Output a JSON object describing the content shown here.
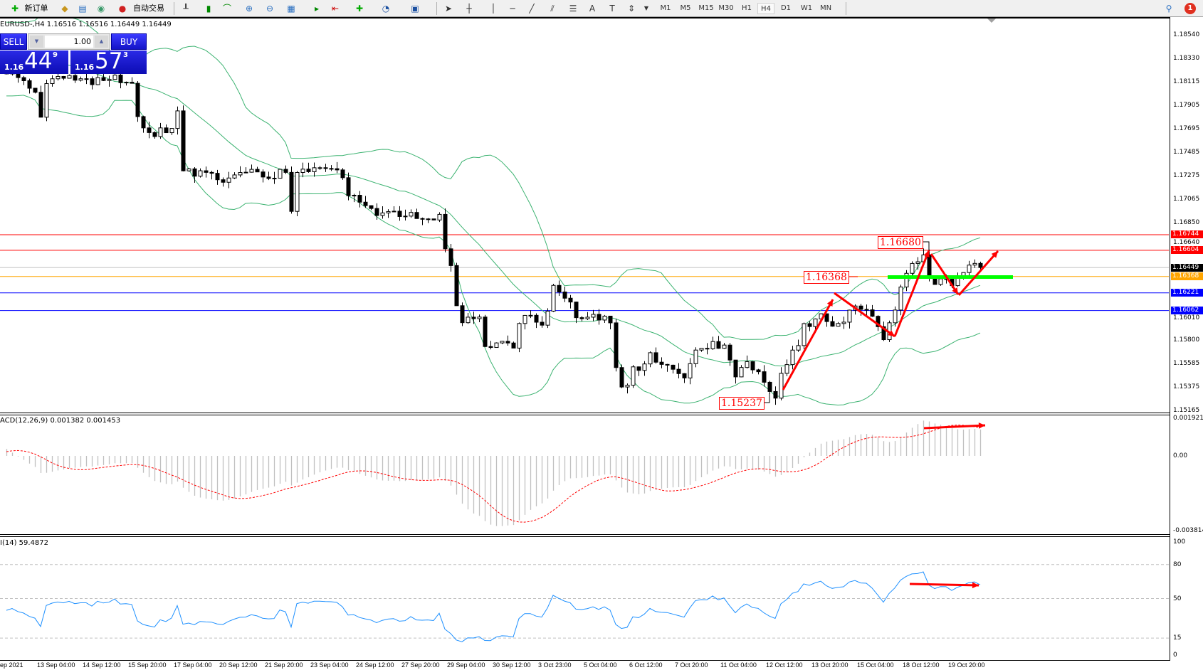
{
  "toolbar": {
    "new_order": "新订单",
    "auto_trading": "自动交易",
    "timeframes": [
      "M1",
      "M5",
      "M15",
      "M30",
      "H1",
      "H4",
      "D1",
      "W1",
      "MN"
    ],
    "active_timeframe": "H4",
    "notification_count": "1"
  },
  "chart": {
    "title": "EURUSD-,H4  1.16516 1.16516 1.16449 1.16449",
    "one_click": {
      "sell_label": "SELL",
      "buy_label": "BUY",
      "lot": "1.00",
      "sell_prefix": "1.16",
      "sell_big": "44",
      "sell_sup": "9",
      "buy_prefix": "1.16",
      "buy_big": "57",
      "buy_sup": "3"
    },
    "price_axis_labels": [
      "1.18540",
      "1.18330",
      "1.18115",
      "1.17905",
      "1.17695",
      "1.17485",
      "1.17275",
      "1.17065",
      "1.16850",
      "1.16640",
      "1.16010",
      "1.15800",
      "1.15585",
      "1.15375",
      "1.15165"
    ],
    "hlines": [
      {
        "price": 1.16744,
        "label": "1.16744",
        "color": "#ff0000"
      },
      {
        "price": 1.16604,
        "label": "1.16604",
        "color": "#ff0000"
      },
      {
        "price": 1.16449,
        "label": "1.16449",
        "color": "#000000",
        "line_color": "#c0c0c0"
      },
      {
        "price": 1.16368,
        "label": "1.16368",
        "color": "#ffa500"
      },
      {
        "price": 1.16221,
        "label": "1.16221",
        "color": "#0000ff"
      },
      {
        "price": 1.16062,
        "label": "1.16062",
        "color": "#0000ff"
      }
    ],
    "annotations": [
      "1.16680",
      "1.16368",
      "1.15237"
    ],
    "time_labels": [
      "ep 2021",
      "13 Sep 04:00",
      "14 Sep 12:00",
      "15 Sep 20:00",
      "17 Sep 04:00",
      "20 Sep 12:00",
      "21 Sep 20:00",
      "23 Sep 04:00",
      "24 Sep 12:00",
      "27 Sep 20:00",
      "29 Sep 04:00",
      "30 Sep 12:00",
      "3 Oct 23:00",
      "5 Oct 04:00",
      "6 Oct 12:00",
      "7 Oct 20:00",
      "11 Oct 04:00",
      "12 Oct 12:00",
      "13 Oct 20:00",
      "15 Oct 04:00",
      "18 Oct 12:00",
      "19 Oct 20:00"
    ]
  },
  "macd": {
    "title": "ACD(12,26,9) 0.001382 0.001453",
    "axis": [
      "0.001921",
      "0.00",
      "-0.003814"
    ]
  },
  "rsi": {
    "title": "I(14) 59.4872",
    "axis": [
      "100",
      "80",
      "50",
      "15",
      "0"
    ]
  },
  "chart_data": {
    "type": "candlestick",
    "symbol": "EURUSD-",
    "timeframe": "H4",
    "ylim": [
      1.15165,
      1.187
    ],
    "close_keypoints": [
      [
        0,
        1.18214
      ],
      [
        2,
        1.1815
      ],
      [
        5,
        1.18054
      ],
      [
        6,
        1.17831
      ],
      [
        7,
        1.18118
      ],
      [
        10,
        1.1815
      ],
      [
        14,
        1.18118
      ],
      [
        18,
        1.1815
      ],
      [
        22,
        1.18137
      ],
      [
        23,
        1.17805
      ],
      [
        24,
        1.17671
      ],
      [
        26,
        1.17652
      ],
      [
        29,
        1.17703
      ],
      [
        30,
        1.17863
      ],
      [
        31,
        1.1732
      ],
      [
        34,
        1.17288
      ],
      [
        39,
        1.17224
      ],
      [
        43,
        1.1732
      ],
      [
        46,
        1.17256
      ],
      [
        49,
        1.1732
      ],
      [
        50,
        1.16936
      ],
      [
        51,
        1.17288
      ],
      [
        54,
        1.17351
      ],
      [
        58,
        1.17351
      ],
      [
        60,
        1.17128
      ],
      [
        61,
        1.17115
      ],
      [
        65,
        1.16936
      ],
      [
        69,
        1.16936
      ],
      [
        74,
        1.16872
      ],
      [
        76,
        1.16904
      ],
      [
        77,
        1.16617
      ],
      [
        78,
        1.16489
      ],
      [
        79,
        1.16105
      ],
      [
        80,
        1.15933
      ],
      [
        81,
        1.15978
      ],
      [
        83,
        1.15978
      ],
      [
        84,
        1.15741
      ],
      [
        86,
        1.15786
      ],
      [
        89,
        1.15754
      ],
      [
        90,
        1.15965
      ],
      [
        92,
        1.1601
      ],
      [
        94,
        1.15914
      ],
      [
        95,
        1.16042
      ],
      [
        96,
        1.1631
      ],
      [
        97,
        1.16201
      ],
      [
        99,
        1.16169
      ],
      [
        100,
        1.15978
      ],
      [
        103,
        1.16042
      ],
      [
        106,
        1.15946
      ],
      [
        107,
        1.15549
      ],
      [
        108,
        1.15358
      ],
      [
        109,
        1.15422
      ],
      [
        110,
        1.15581
      ],
      [
        111,
        1.1553
      ],
      [
        113,
        1.15658
      ],
      [
        115,
        1.15562
      ],
      [
        117,
        1.1553
      ],
      [
        119,
        1.15479
      ],
      [
        120,
        1.15613
      ],
      [
        121,
        1.1569
      ],
      [
        122,
        1.15735
      ],
      [
        124,
        1.15754
      ],
      [
        126,
        1.15735
      ],
      [
        128,
        1.15498
      ],
      [
        130,
        1.15581
      ],
      [
        132,
        1.1553
      ],
      [
        134,
        1.15326
      ],
      [
        135,
        1.15294
      ],
      [
        136,
        1.15498
      ],
      [
        138,
        1.15677
      ],
      [
        139,
        1.15754
      ],
      [
        140,
        1.15914
      ],
      [
        141,
        1.15901
      ],
      [
        143,
        1.16042
      ],
      [
        145,
        1.15901
      ],
      [
        146,
        1.15914
      ],
      [
        148,
        1.16061
      ],
      [
        150,
        1.16093
      ],
      [
        152,
        1.15978
      ],
      [
        154,
        1.15818
      ],
      [
        155,
        1.15946
      ],
      [
        156,
        1.16067
      ],
      [
        158,
        1.16412
      ],
      [
        160,
        1.16521
      ],
      [
        161,
        1.16553
      ],
      [
        162,
        1.16329
      ],
      [
        164,
        1.16329
      ],
      [
        166,
        1.16297
      ],
      [
        168,
        1.16387
      ],
      [
        170,
        1.16489
      ],
      [
        171,
        1.16449
      ]
    ],
    "indicators": [
      "Bollinger Bands(20,2)",
      "MACD(12,26,9)",
      "RSI(14)"
    ],
    "colors": {
      "bands": "#3cb371",
      "macd_hist": "#c0c0c0",
      "macd_signal": "#ff0000",
      "rsi": "#1e90ff",
      "drawing": "#ff0000",
      "zone": "#00ff00"
    }
  }
}
